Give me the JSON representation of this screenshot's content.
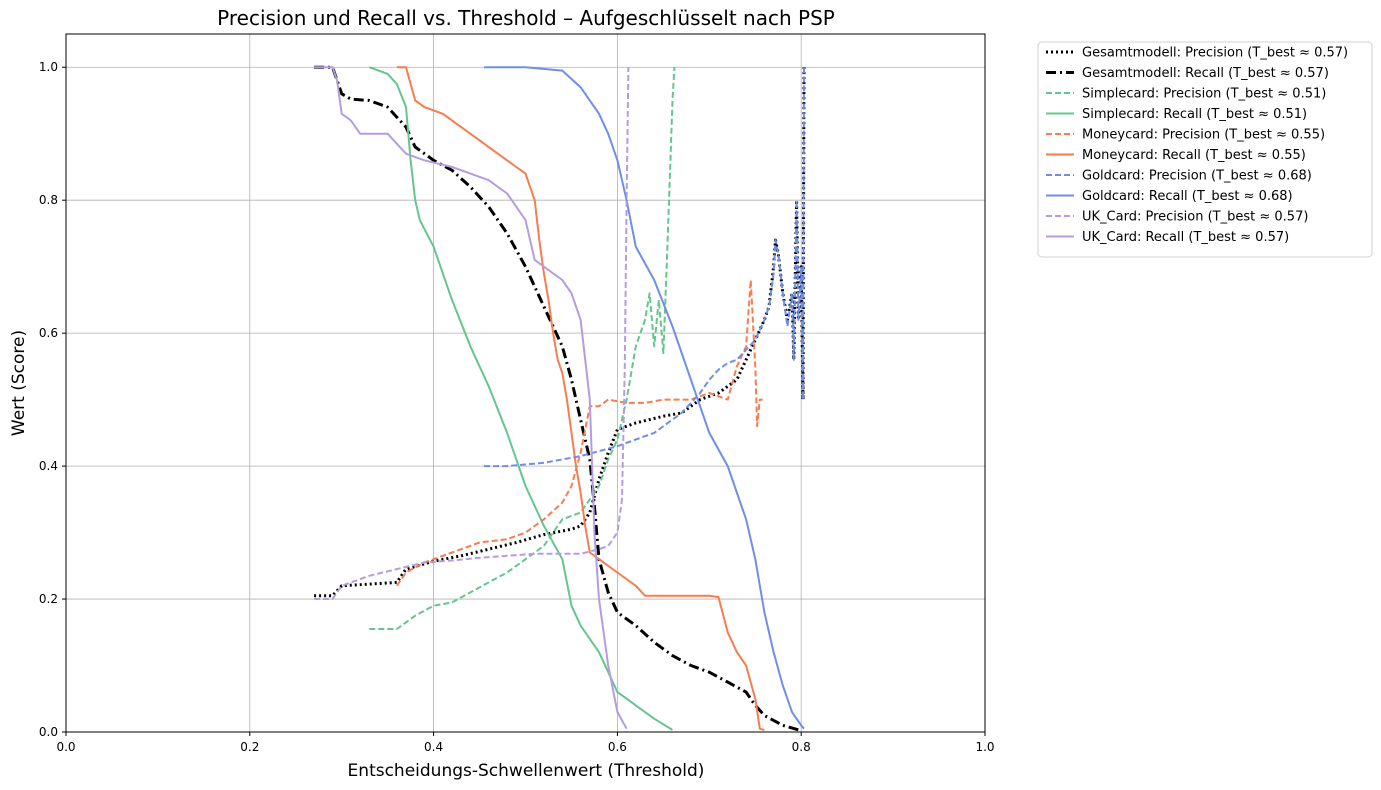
{
  "chart_data": {
    "type": "line",
    "title": "Precision und Recall vs. Threshold – Aufgeschlüsselt nach PSP",
    "xlabel": "Entscheidungs-Schwellenwert (Threshold)",
    "ylabel": "Wert (Score)",
    "xlim": [
      0.0,
      1.0
    ],
    "ylim": [
      0.0,
      1.05
    ],
    "x_ticks": [
      "0.0",
      "0.2",
      "0.4",
      "0.6",
      "0.8",
      "1.0"
    ],
    "y_ticks": [
      "0.0",
      "0.2",
      "0.4",
      "0.6",
      "0.8",
      "1.0"
    ],
    "grid": true,
    "legend_position": "outside-top-right",
    "series": [
      {
        "name": "Gesamtmodell: Precision (T_best ≈ 0.57)",
        "color": "#000000",
        "style": "dotted",
        "width": 3,
        "points": [
          [
            0.27,
            0.205
          ],
          [
            0.29,
            0.205
          ],
          [
            0.3,
            0.22
          ],
          [
            0.36,
            0.225
          ],
          [
            0.37,
            0.245
          ],
          [
            0.4,
            0.257
          ],
          [
            0.43,
            0.265
          ],
          [
            0.46,
            0.275
          ],
          [
            0.49,
            0.285
          ],
          [
            0.52,
            0.297
          ],
          [
            0.55,
            0.305
          ],
          [
            0.56,
            0.31
          ],
          [
            0.57,
            0.33
          ],
          [
            0.58,
            0.38
          ],
          [
            0.59,
            0.42
          ],
          [
            0.6,
            0.455
          ],
          [
            0.62,
            0.465
          ],
          [
            0.65,
            0.475
          ],
          [
            0.67,
            0.48
          ],
          [
            0.69,
            0.5
          ],
          [
            0.71,
            0.51
          ],
          [
            0.73,
            0.53
          ],
          [
            0.74,
            0.56
          ],
          [
            0.75,
            0.59
          ],
          [
            0.76,
            0.62
          ],
          [
            0.765,
            0.64
          ],
          [
            0.77,
            0.7
          ],
          [
            0.772,
            0.74
          ],
          [
            0.775,
            0.72
          ],
          [
            0.78,
            0.66
          ],
          [
            0.785,
            0.62
          ],
          [
            0.79,
            0.66
          ],
          [
            0.792,
            0.56
          ],
          [
            0.795,
            0.8
          ],
          [
            0.797,
            0.62
          ],
          [
            0.8,
            0.7
          ],
          [
            0.802,
            0.5
          ],
          [
            0.803,
            1.0
          ]
        ]
      },
      {
        "name": "Gesamtmodell: Recall (T_best ≈ 0.57)",
        "color": "#000000",
        "style": "dashdot",
        "width": 3,
        "points": [
          [
            0.27,
            1.0
          ],
          [
            0.29,
            1.0
          ],
          [
            0.3,
            0.96
          ],
          [
            0.31,
            0.952
          ],
          [
            0.33,
            0.95
          ],
          [
            0.35,
            0.94
          ],
          [
            0.37,
            0.91
          ],
          [
            0.38,
            0.88
          ],
          [
            0.4,
            0.86
          ],
          [
            0.42,
            0.845
          ],
          [
            0.44,
            0.82
          ],
          [
            0.46,
            0.79
          ],
          [
            0.48,
            0.75
          ],
          [
            0.5,
            0.7
          ],
          [
            0.52,
            0.64
          ],
          [
            0.54,
            0.58
          ],
          [
            0.55,
            0.53
          ],
          [
            0.56,
            0.47
          ],
          [
            0.57,
            0.41
          ],
          [
            0.575,
            0.34
          ],
          [
            0.58,
            0.26
          ],
          [
            0.59,
            0.21
          ],
          [
            0.6,
            0.18
          ],
          [
            0.62,
            0.16
          ],
          [
            0.64,
            0.135
          ],
          [
            0.66,
            0.115
          ],
          [
            0.68,
            0.1
          ],
          [
            0.7,
            0.09
          ],
          [
            0.72,
            0.075
          ],
          [
            0.74,
            0.06
          ],
          [
            0.75,
            0.04
          ],
          [
            0.76,
            0.025
          ],
          [
            0.78,
            0.01
          ],
          [
            0.8,
            0.002
          ]
        ]
      },
      {
        "name": "Simplecard: Precision (T_best ≈ 0.51)",
        "color": "#66c58f",
        "style": "dashed",
        "width": 2,
        "points": [
          [
            0.33,
            0.155
          ],
          [
            0.36,
            0.155
          ],
          [
            0.38,
            0.175
          ],
          [
            0.4,
            0.19
          ],
          [
            0.42,
            0.195
          ],
          [
            0.44,
            0.21
          ],
          [
            0.46,
            0.225
          ],
          [
            0.48,
            0.24
          ],
          [
            0.5,
            0.26
          ],
          [
            0.52,
            0.28
          ],
          [
            0.54,
            0.32
          ],
          [
            0.56,
            0.33
          ],
          [
            0.58,
            0.37
          ],
          [
            0.59,
            0.41
          ],
          [
            0.6,
            0.44
          ],
          [
            0.61,
            0.5
          ],
          [
            0.62,
            0.58
          ],
          [
            0.63,
            0.62
          ],
          [
            0.635,
            0.66
          ],
          [
            0.64,
            0.58
          ],
          [
            0.645,
            0.65
          ],
          [
            0.65,
            0.57
          ],
          [
            0.655,
            0.75
          ],
          [
            0.66,
            0.95
          ],
          [
            0.662,
            1.0
          ]
        ]
      },
      {
        "name": "Simplecard: Recall (T_best ≈ 0.51)",
        "color": "#66c58f",
        "style": "solid",
        "width": 2,
        "points": [
          [
            0.33,
            1.0
          ],
          [
            0.35,
            0.99
          ],
          [
            0.36,
            0.975
          ],
          [
            0.37,
            0.94
          ],
          [
            0.375,
            0.86
          ],
          [
            0.38,
            0.8
          ],
          [
            0.385,
            0.77
          ],
          [
            0.4,
            0.73
          ],
          [
            0.42,
            0.65
          ],
          [
            0.44,
            0.58
          ],
          [
            0.46,
            0.52
          ],
          [
            0.48,
            0.45
          ],
          [
            0.5,
            0.37
          ],
          [
            0.52,
            0.31
          ],
          [
            0.54,
            0.26
          ],
          [
            0.55,
            0.19
          ],
          [
            0.56,
            0.16
          ],
          [
            0.58,
            0.12
          ],
          [
            0.6,
            0.06
          ],
          [
            0.62,
            0.04
          ],
          [
            0.64,
            0.02
          ],
          [
            0.66,
            0.003
          ]
        ]
      },
      {
        "name": "Moneycard: Precision (T_best ≈ 0.55)",
        "color": "#f67d4f",
        "style": "dashed",
        "width": 2,
        "points": [
          [
            0.36,
            0.22
          ],
          [
            0.37,
            0.24
          ],
          [
            0.39,
            0.255
          ],
          [
            0.42,
            0.27
          ],
          [
            0.45,
            0.285
          ],
          [
            0.48,
            0.29
          ],
          [
            0.5,
            0.3
          ],
          [
            0.52,
            0.32
          ],
          [
            0.54,
            0.345
          ],
          [
            0.55,
            0.37
          ],
          [
            0.56,
            0.42
          ],
          [
            0.57,
            0.49
          ],
          [
            0.58,
            0.49
          ],
          [
            0.59,
            0.5
          ],
          [
            0.61,
            0.495
          ],
          [
            0.63,
            0.495
          ],
          [
            0.65,
            0.5
          ],
          [
            0.68,
            0.5
          ],
          [
            0.7,
            0.51
          ],
          [
            0.72,
            0.5
          ],
          [
            0.73,
            0.55
          ],
          [
            0.74,
            0.58
          ],
          [
            0.745,
            0.68
          ],
          [
            0.75,
            0.55
          ],
          [
            0.752,
            0.46
          ],
          [
            0.755,
            0.5
          ],
          [
            0.758,
            0.5
          ]
        ]
      },
      {
        "name": "Moneycard: Recall (T_best ≈ 0.55)",
        "color": "#f67d4f",
        "style": "solid",
        "width": 2,
        "points": [
          [
            0.36,
            1.0
          ],
          [
            0.37,
            1.0
          ],
          [
            0.38,
            0.95
          ],
          [
            0.39,
            0.94
          ],
          [
            0.41,
            0.93
          ],
          [
            0.43,
            0.91
          ],
          [
            0.45,
            0.89
          ],
          [
            0.47,
            0.87
          ],
          [
            0.49,
            0.85
          ],
          [
            0.5,
            0.84
          ],
          [
            0.505,
            0.82
          ],
          [
            0.51,
            0.8
          ],
          [
            0.515,
            0.74
          ],
          [
            0.52,
            0.69
          ],
          [
            0.525,
            0.65
          ],
          [
            0.53,
            0.6
          ],
          [
            0.535,
            0.56
          ],
          [
            0.54,
            0.54
          ],
          [
            0.545,
            0.5
          ],
          [
            0.55,
            0.45
          ],
          [
            0.555,
            0.4
          ],
          [
            0.56,
            0.36
          ],
          [
            0.565,
            0.31
          ],
          [
            0.57,
            0.27
          ],
          [
            0.58,
            0.26
          ],
          [
            0.6,
            0.24
          ],
          [
            0.62,
            0.22
          ],
          [
            0.63,
            0.205
          ],
          [
            0.65,
            0.205
          ],
          [
            0.7,
            0.205
          ],
          [
            0.71,
            0.203
          ],
          [
            0.72,
            0.15
          ],
          [
            0.73,
            0.12
          ],
          [
            0.74,
            0.1
          ],
          [
            0.75,
            0.05
          ],
          [
            0.755,
            0.005
          ],
          [
            0.76,
            0.003
          ]
        ]
      },
      {
        "name": "Goldcard: Precision (T_best ≈ 0.68)",
        "color": "#6f8ee8",
        "style": "dashed",
        "width": 2,
        "points": [
          [
            0.455,
            0.4
          ],
          [
            0.48,
            0.4
          ],
          [
            0.52,
            0.405
          ],
          [
            0.56,
            0.415
          ],
          [
            0.6,
            0.43
          ],
          [
            0.62,
            0.44
          ],
          [
            0.64,
            0.45
          ],
          [
            0.65,
            0.46
          ],
          [
            0.67,
            0.48
          ],
          [
            0.69,
            0.51
          ],
          [
            0.7,
            0.53
          ],
          [
            0.71,
            0.545
          ],
          [
            0.72,
            0.555
          ],
          [
            0.73,
            0.56
          ],
          [
            0.74,
            0.575
          ],
          [
            0.75,
            0.59
          ],
          [
            0.76,
            0.62
          ],
          [
            0.765,
            0.64
          ],
          [
            0.77,
            0.69
          ],
          [
            0.772,
            0.74
          ],
          [
            0.775,
            0.72
          ],
          [
            0.78,
            0.66
          ],
          [
            0.785,
            0.61
          ],
          [
            0.79,
            0.66
          ],
          [
            0.792,
            0.56
          ],
          [
            0.795,
            0.8
          ],
          [
            0.797,
            0.62
          ],
          [
            0.8,
            0.7
          ],
          [
            0.802,
            0.5
          ],
          [
            0.803,
            1.0
          ]
        ]
      },
      {
        "name": "Goldcard: Recall (T_best ≈ 0.68)",
        "color": "#6f8ee8",
        "style": "solid",
        "width": 2,
        "points": [
          [
            0.455,
            1.0
          ],
          [
            0.5,
            1.0
          ],
          [
            0.54,
            0.995
          ],
          [
            0.56,
            0.97
          ],
          [
            0.58,
            0.93
          ],
          [
            0.59,
            0.9
          ],
          [
            0.6,
            0.86
          ],
          [
            0.61,
            0.8
          ],
          [
            0.62,
            0.73
          ],
          [
            0.64,
            0.68
          ],
          [
            0.66,
            0.61
          ],
          [
            0.68,
            0.53
          ],
          [
            0.7,
            0.45
          ],
          [
            0.72,
            0.4
          ],
          [
            0.74,
            0.32
          ],
          [
            0.75,
            0.26
          ],
          [
            0.76,
            0.18
          ],
          [
            0.77,
            0.12
          ],
          [
            0.78,
            0.07
          ],
          [
            0.79,
            0.03
          ],
          [
            0.8,
            0.01
          ],
          [
            0.803,
            0.005
          ]
        ]
      },
      {
        "name": "UK_Card: Precision (T_best ≈ 0.57)",
        "color": "#b39de0",
        "style": "dashed",
        "width": 2,
        "points": [
          [
            0.27,
            0.2
          ],
          [
            0.29,
            0.2
          ],
          [
            0.3,
            0.22
          ],
          [
            0.33,
            0.235
          ],
          [
            0.36,
            0.245
          ],
          [
            0.39,
            0.255
          ],
          [
            0.42,
            0.258
          ],
          [
            0.45,
            0.262
          ],
          [
            0.48,
            0.265
          ],
          [
            0.51,
            0.268
          ],
          [
            0.54,
            0.268
          ],
          [
            0.56,
            0.268
          ],
          [
            0.58,
            0.275
          ],
          [
            0.59,
            0.28
          ],
          [
            0.6,
            0.3
          ],
          [
            0.605,
            0.35
          ],
          [
            0.608,
            0.55
          ],
          [
            0.61,
            0.8
          ],
          [
            0.612,
            1.0
          ]
        ]
      },
      {
        "name": "UK_Card: Recall (T_best ≈ 0.57)",
        "color": "#b39de0",
        "style": "solid",
        "width": 2,
        "points": [
          [
            0.27,
            1.0
          ],
          [
            0.29,
            1.0
          ],
          [
            0.295,
            0.98
          ],
          [
            0.3,
            0.93
          ],
          [
            0.31,
            0.92
          ],
          [
            0.32,
            0.9
          ],
          [
            0.35,
            0.9
          ],
          [
            0.37,
            0.87
          ],
          [
            0.39,
            0.86
          ],
          [
            0.42,
            0.85
          ],
          [
            0.44,
            0.84
          ],
          [
            0.46,
            0.83
          ],
          [
            0.48,
            0.81
          ],
          [
            0.5,
            0.77
          ],
          [
            0.51,
            0.71
          ],
          [
            0.52,
            0.7
          ],
          [
            0.54,
            0.68
          ],
          [
            0.55,
            0.66
          ],
          [
            0.56,
            0.62
          ],
          [
            0.57,
            0.5
          ],
          [
            0.575,
            0.3
          ],
          [
            0.58,
            0.2
          ],
          [
            0.59,
            0.1
          ],
          [
            0.6,
            0.03
          ],
          [
            0.61,
            0.005
          ]
        ]
      }
    ]
  }
}
